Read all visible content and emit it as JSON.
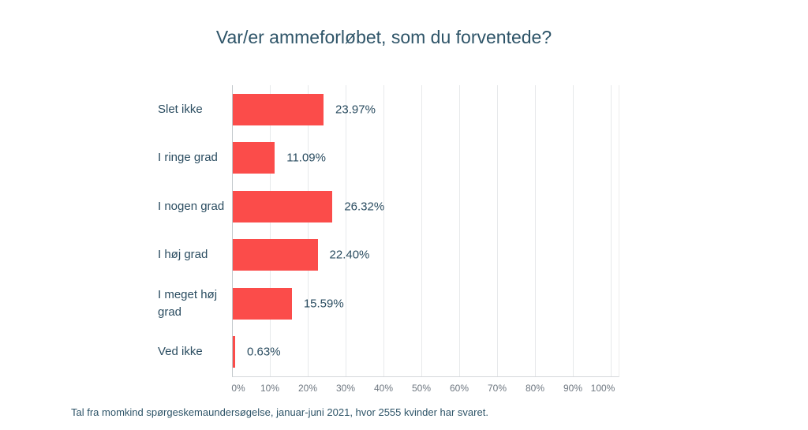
{
  "chart_data": {
    "type": "bar",
    "orientation": "horizontal",
    "title": "Var/er ammeforløbet, som du forventede?",
    "categories": [
      "Slet ikke",
      "I ringe grad",
      "I nogen grad",
      "I høj grad",
      "I meget høj grad",
      "Ved ikke"
    ],
    "values": [
      23.97,
      11.09,
      26.32,
      22.4,
      15.59,
      0.63
    ],
    "value_labels": [
      "23.97%",
      "11.09%",
      "26.32%",
      "22.40%",
      "15.59%",
      "0.63%"
    ],
    "x_tick_labels": [
      "0%",
      "10%",
      "20%",
      "30%",
      "40%",
      "50%",
      "60%",
      "70%",
      "80%",
      "90%",
      "100%"
    ],
    "xlim": [
      0,
      100
    ],
    "xlabel": "",
    "ylabel": "",
    "grid": "vertical",
    "legend_position": "none"
  },
  "footer": {
    "text": "Tal fra momkind spørgeskemaundersøgelse, januar-juni 2021, hvor 2555 kvinder har svaret."
  },
  "colors": {
    "bar": "#fb4c4a",
    "title_text": "#2e5468",
    "label_text": "#2b4d61",
    "tick_text": "#6e7780",
    "gridline": "#e7e9eb",
    "axis_line_left": "#c2c7cb",
    "axis_line_bottom": "#d5d8db",
    "plot_border_right": "#ededee",
    "background": "#ffffff"
  }
}
